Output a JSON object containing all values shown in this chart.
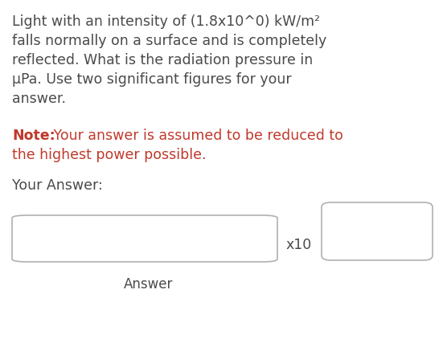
{
  "background_color": "#ffffff",
  "line1": "Light with an intensity of (1.8x10^0) kW/m²",
  "line2": "falls normally on a surface and is completely",
  "line3": "reflected. What is the radiation pressure in",
  "line4": "μPa. Use two significant figures for your",
  "line5": "answer.",
  "note_bold": "Note:",
  "note_rest": " Your answer is assumed to be reduced to",
  "note_line2": "the highest power possible.",
  "note_color": "#c0392b",
  "your_answer_label": "Your Answer:",
  "x10_label": "x10",
  "answer_label": "Answer",
  "text_color": "#4a4a4a",
  "box_edge_color": "#b0b0b0",
  "font_size_main": 12.5,
  "font_size_note": 12.5,
  "font_size_label": 12.5,
  "font_size_x10": 12.5,
  "font_size_answer": 12.0
}
